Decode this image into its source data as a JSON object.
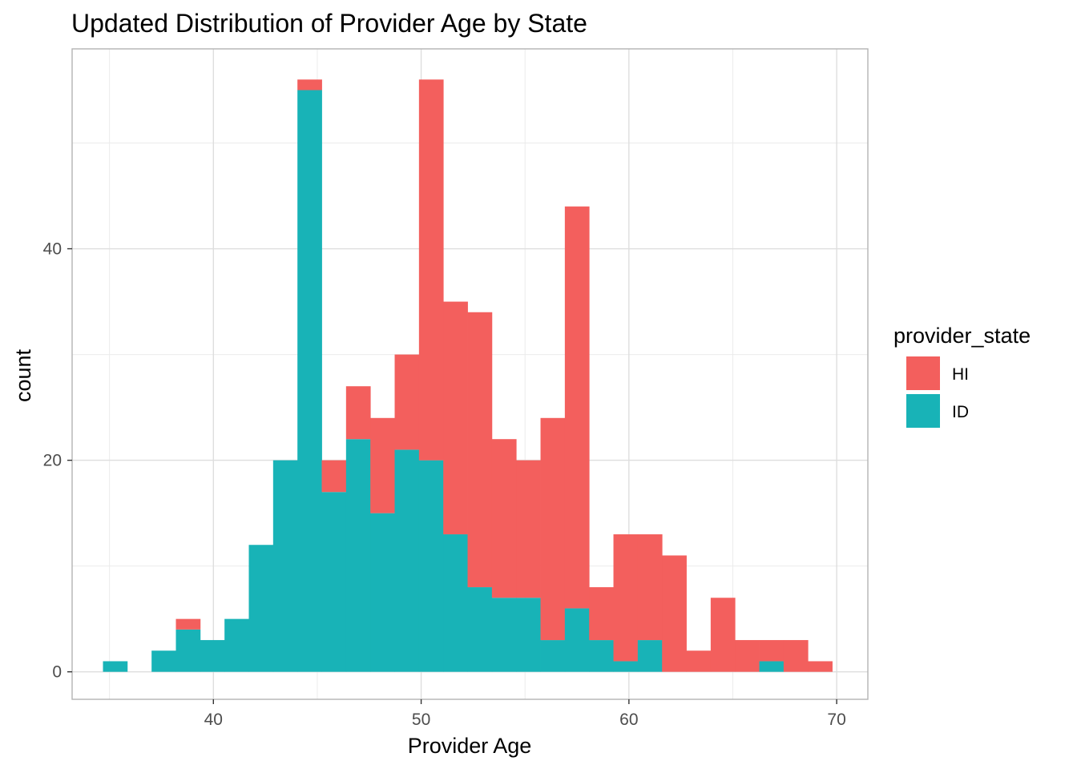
{
  "chart_data": {
    "type": "bar",
    "stacked": true,
    "title": "Updated Distribution of Provider Age by State",
    "xlabel": "Provider Age",
    "ylabel": "count",
    "xlim": [
      33.2,
      71.5
    ],
    "ylim": [
      -2.6,
      58.9
    ],
    "x_ticks": [
      40,
      50,
      60,
      70
    ],
    "y_ticks": [
      0,
      20,
      40
    ],
    "grid": true,
    "bin_width": 1.17,
    "legend": {
      "title": "provider_state",
      "placement": "right",
      "entries": [
        {
          "label": "HI",
          "color": "#F35F5D"
        },
        {
          "label": "ID",
          "color": "#18B3B7"
        }
      ]
    },
    "bins": {
      "centers": [
        35.27,
        36.44,
        37.61,
        38.78,
        39.95,
        41.12,
        42.29,
        43.46,
        44.63,
        45.8,
        46.97,
        48.14,
        49.31,
        50.48,
        51.65,
        52.82,
        53.99,
        55.16,
        56.33,
        57.5,
        58.67,
        59.84,
        61.01,
        62.18,
        63.35,
        64.52,
        65.69,
        66.86,
        68.03,
        69.2
      ]
    },
    "series": [
      {
        "name": "ID",
        "color": "#18B3B7",
        "values": [
          1,
          0,
          2,
          4,
          3,
          5,
          12,
          20,
          55,
          17,
          22,
          15,
          21,
          20,
          13,
          8,
          7,
          7,
          3,
          6,
          3,
          1,
          3,
          0,
          0,
          0,
          0,
          1,
          0,
          0
        ]
      },
      {
        "name": "HI",
        "color": "#F35F5D",
        "values": [
          0,
          0,
          0,
          1,
          0,
          0,
          0,
          0,
          1,
          3,
          5,
          9,
          9,
          36,
          22,
          26,
          15,
          13,
          21,
          38,
          5,
          12,
          10,
          11,
          2,
          7,
          3,
          2,
          3,
          1
        ]
      }
    ]
  }
}
